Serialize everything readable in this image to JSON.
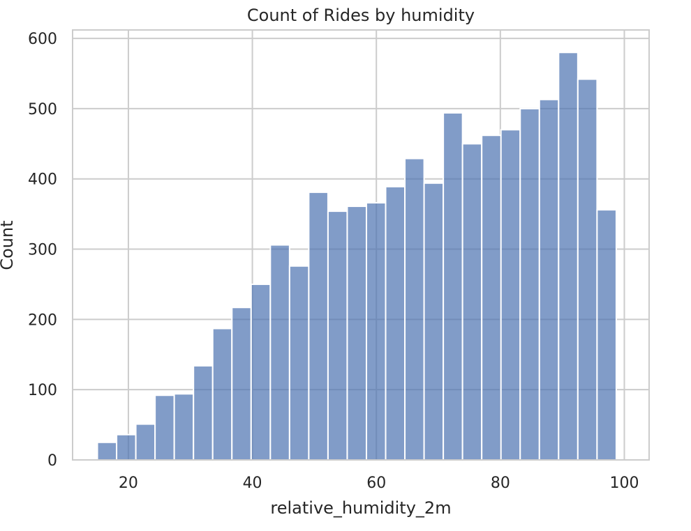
{
  "chart_data": {
    "type": "bar",
    "title": "Count of Rides by humidity",
    "xlabel": "relative_humidity_2m",
    "ylabel": "Count",
    "xlim": [
      11,
      104
    ],
    "ylim": [
      0,
      612
    ],
    "x_ticks": [
      20,
      40,
      60,
      80,
      100
    ],
    "y_ticks": [
      0,
      100,
      200,
      300,
      400,
      500,
      600
    ],
    "grid": true,
    "bar_color": "#4c72b0",
    "bar_opacity": 0.7,
    "bins": [
      {
        "x0": 15.0,
        "x1": 18.1,
        "count": 25
      },
      {
        "x0": 18.1,
        "x1": 21.2,
        "count": 36
      },
      {
        "x0": 21.2,
        "x1": 24.3,
        "count": 51
      },
      {
        "x0": 24.3,
        "x1": 27.4,
        "count": 92
      },
      {
        "x0": 27.4,
        "x1": 30.5,
        "count": 94
      },
      {
        "x0": 30.5,
        "x1": 33.6,
        "count": 134
      },
      {
        "x0": 33.6,
        "x1": 36.7,
        "count": 187
      },
      {
        "x0": 36.7,
        "x1": 39.8,
        "count": 217
      },
      {
        "x0": 39.8,
        "x1": 42.9,
        "count": 250
      },
      {
        "x0": 42.9,
        "x1": 46.0,
        "count": 306
      },
      {
        "x0": 46.0,
        "x1": 49.1,
        "count": 276
      },
      {
        "x0": 49.1,
        "x1": 52.2,
        "count": 381
      },
      {
        "x0": 52.2,
        "x1": 55.3,
        "count": 354
      },
      {
        "x0": 55.3,
        "x1": 58.4,
        "count": 361
      },
      {
        "x0": 58.4,
        "x1": 61.5,
        "count": 366
      },
      {
        "x0": 61.5,
        "x1": 64.6,
        "count": 389
      },
      {
        "x0": 64.6,
        "x1": 67.7,
        "count": 429
      },
      {
        "x0": 67.7,
        "x1": 70.8,
        "count": 394
      },
      {
        "x0": 70.8,
        "x1": 73.9,
        "count": 494
      },
      {
        "x0": 73.9,
        "x1": 77.0,
        "count": 450
      },
      {
        "x0": 77.0,
        "x1": 80.1,
        "count": 462
      },
      {
        "x0": 80.1,
        "x1": 83.2,
        "count": 470
      },
      {
        "x0": 83.2,
        "x1": 86.3,
        "count": 500
      },
      {
        "x0": 86.3,
        "x1": 89.4,
        "count": 513
      },
      {
        "x0": 89.4,
        "x1": 92.5,
        "count": 580
      },
      {
        "x0": 92.5,
        "x1": 95.6,
        "count": 542
      },
      {
        "x0": 95.6,
        "x1": 98.7,
        "count": 356
      }
    ]
  }
}
